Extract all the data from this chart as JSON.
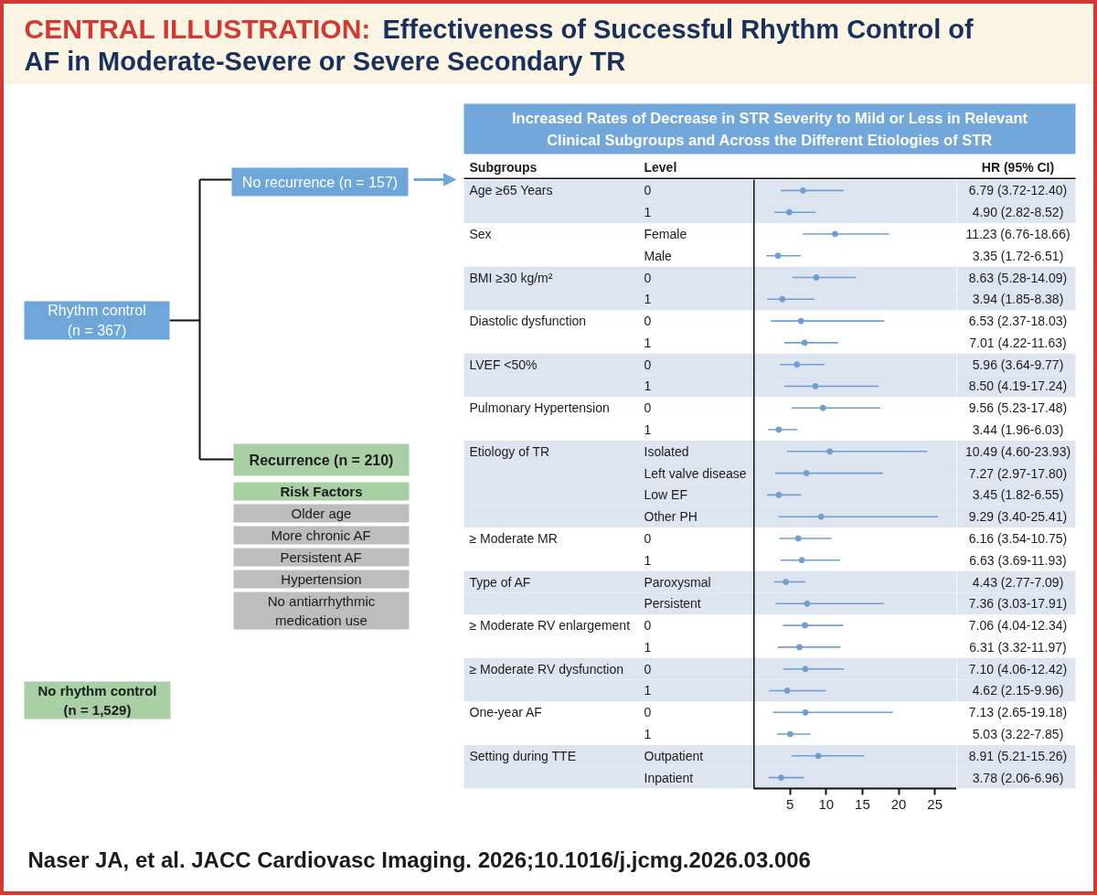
{
  "chart_data": [
    {
      "type": "other",
      "title": "CENTRAL ILLUSTRATION: Effectiveness of Successful Rhythm Control of AF in Moderate-Severe or Severe Secondary TR",
      "annotations": [
        "No recurrence (n = 157)",
        "Rhythm control\n(n = 367)",
        "Recurrence (n = 210)",
        "Risk Factors",
        "Older age",
        "More chronic AF",
        "Persistent AF",
        "Hypertension",
        "No antiarrhythmic\nmedication use",
        "No rhythm control\n(n = 1,529)",
        "Naser JA, et al. JACC Cardiovasc Imaging. 2026;10.1016/j.jcmg.2026.03.006"
      ]
    },
    {
      "type": "scatter",
      "orientation": "horizontal",
      "title": "Increased Rates of Decrease in STR Severity to Mild or Less in Relevant Clinical Subgroups and Across the Different Etiologies of STR",
      "ylabel": "Level",
      "y2label": "Subgroups",
      "annotations": [
        "HR (95% CI)"
      ],
      "categories": [
        "0",
        "1",
        "Female",
        "Male",
        "0",
        "1",
        "0",
        "1",
        "0",
        "1",
        "0",
        "1",
        "Isolated",
        "Left valve disease",
        "Low EF",
        "Other PH",
        "0",
        "1",
        "Paroxysmal",
        "Persistent",
        "0",
        "1",
        "0",
        "1",
        "0",
        "1",
        "Outpatient",
        "Inpatient"
      ],
      "y2_categories": [
        "Age ≥65 Years",
        null,
        "Sex",
        null,
        "BMI ≥30 kg/m²",
        null,
        "Diastolic dysfunction",
        null,
        "LVEF <50%",
        null,
        "Pulmonary Hypertension",
        null,
        "Etiology of TR",
        null,
        null,
        null,
        "≥ Moderate MR",
        null,
        "Type of AF",
        null,
        "≥ Moderate RV enlargement",
        null,
        "≥ Moderate RV dysfunction",
        null,
        "One-year AF",
        null,
        "Setting during TTE",
        null
      ],
      "values": [
        6.79,
        4.9,
        11.23,
        3.35,
        8.63,
        3.94,
        6.53,
        7.01,
        5.96,
        8.5,
        9.56,
        3.44,
        10.49,
        7.27,
        3.45,
        9.29,
        6.16,
        6.63,
        4.43,
        7.36,
        7.06,
        6.31,
        7.1,
        4.62,
        7.13,
        5.03,
        8.91,
        3.78
      ],
      "errors": [
        [
          3.72,
          12.4
        ],
        [
          2.82,
          8.52
        ],
        [
          6.76,
          18.66
        ],
        [
          1.72,
          6.51
        ],
        [
          5.28,
          14.09
        ],
        [
          1.85,
          8.38
        ],
        [
          2.37,
          18.03
        ],
        [
          4.22,
          11.63
        ],
        [
          3.64,
          9.77
        ],
        [
          4.19,
          17.24
        ],
        [
          5.23,
          17.48
        ],
        [
          1.96,
          6.03
        ],
        [
          4.6,
          23.93
        ],
        [
          2.97,
          17.8
        ],
        [
          1.82,
          6.55
        ],
        [
          3.4,
          25.41
        ],
        [
          3.54,
          10.75
        ],
        [
          3.69,
          11.93
        ],
        [
          2.77,
          7.09
        ],
        [
          3.03,
          17.91
        ],
        [
          4.04,
          12.34
        ],
        [
          3.32,
          11.97
        ],
        [
          4.06,
          12.42
        ],
        [
          2.15,
          9.96
        ],
        [
          2.65,
          19.18
        ],
        [
          3.22,
          7.85
        ],
        [
          5.21,
          15.26
        ],
        [
          2.06,
          6.96
        ]
      ],
      "value_labels": [
        "6.79 (3.72-12.40)",
        "4.90 (2.82-8.52)",
        "11.23 (6.76-18.66)",
        "3.35 (1.72-6.51)",
        "8.63 (5.28-14.09)",
        "3.94 (1.85-8.38)",
        "6.53 (2.37-18.03)",
        "7.01 (4.22-11.63)",
        "5.96 (3.64-9.77)",
        "8.50 (4.19-17.24)",
        "9.56 (5.23-17.48)",
        "3.44 (1.96-6.03)",
        "10.49 (4.60-23.93)",
        "7.27 (2.97-17.80)",
        "3.45 (1.82-6.55)",
        "9.29 (3.40-25.41)",
        "6.16 (3.54-10.75)",
        "6.63 (3.69-11.93)",
        "4.43 (2.77-7.09)",
        "7.36 (3.03-17.91)",
        "7.06 (4.04-12.34)",
        "6.31 (3.32-11.97)",
        "7.10 (4.06-12.42)",
        "4.62 (2.15-9.96)",
        "7.13 (2.65-19.18)",
        "5.03 (3.22-7.85)",
        "8.91 (5.21-15.26)",
        "3.78 (2.06-6.96)"
      ],
      "color": "#6f9fd2",
      "marker": "circle",
      "xlim": [
        0,
        28
      ],
      "xticks": [
        5,
        10,
        15,
        20,
        25
      ]
    }
  ]
}
